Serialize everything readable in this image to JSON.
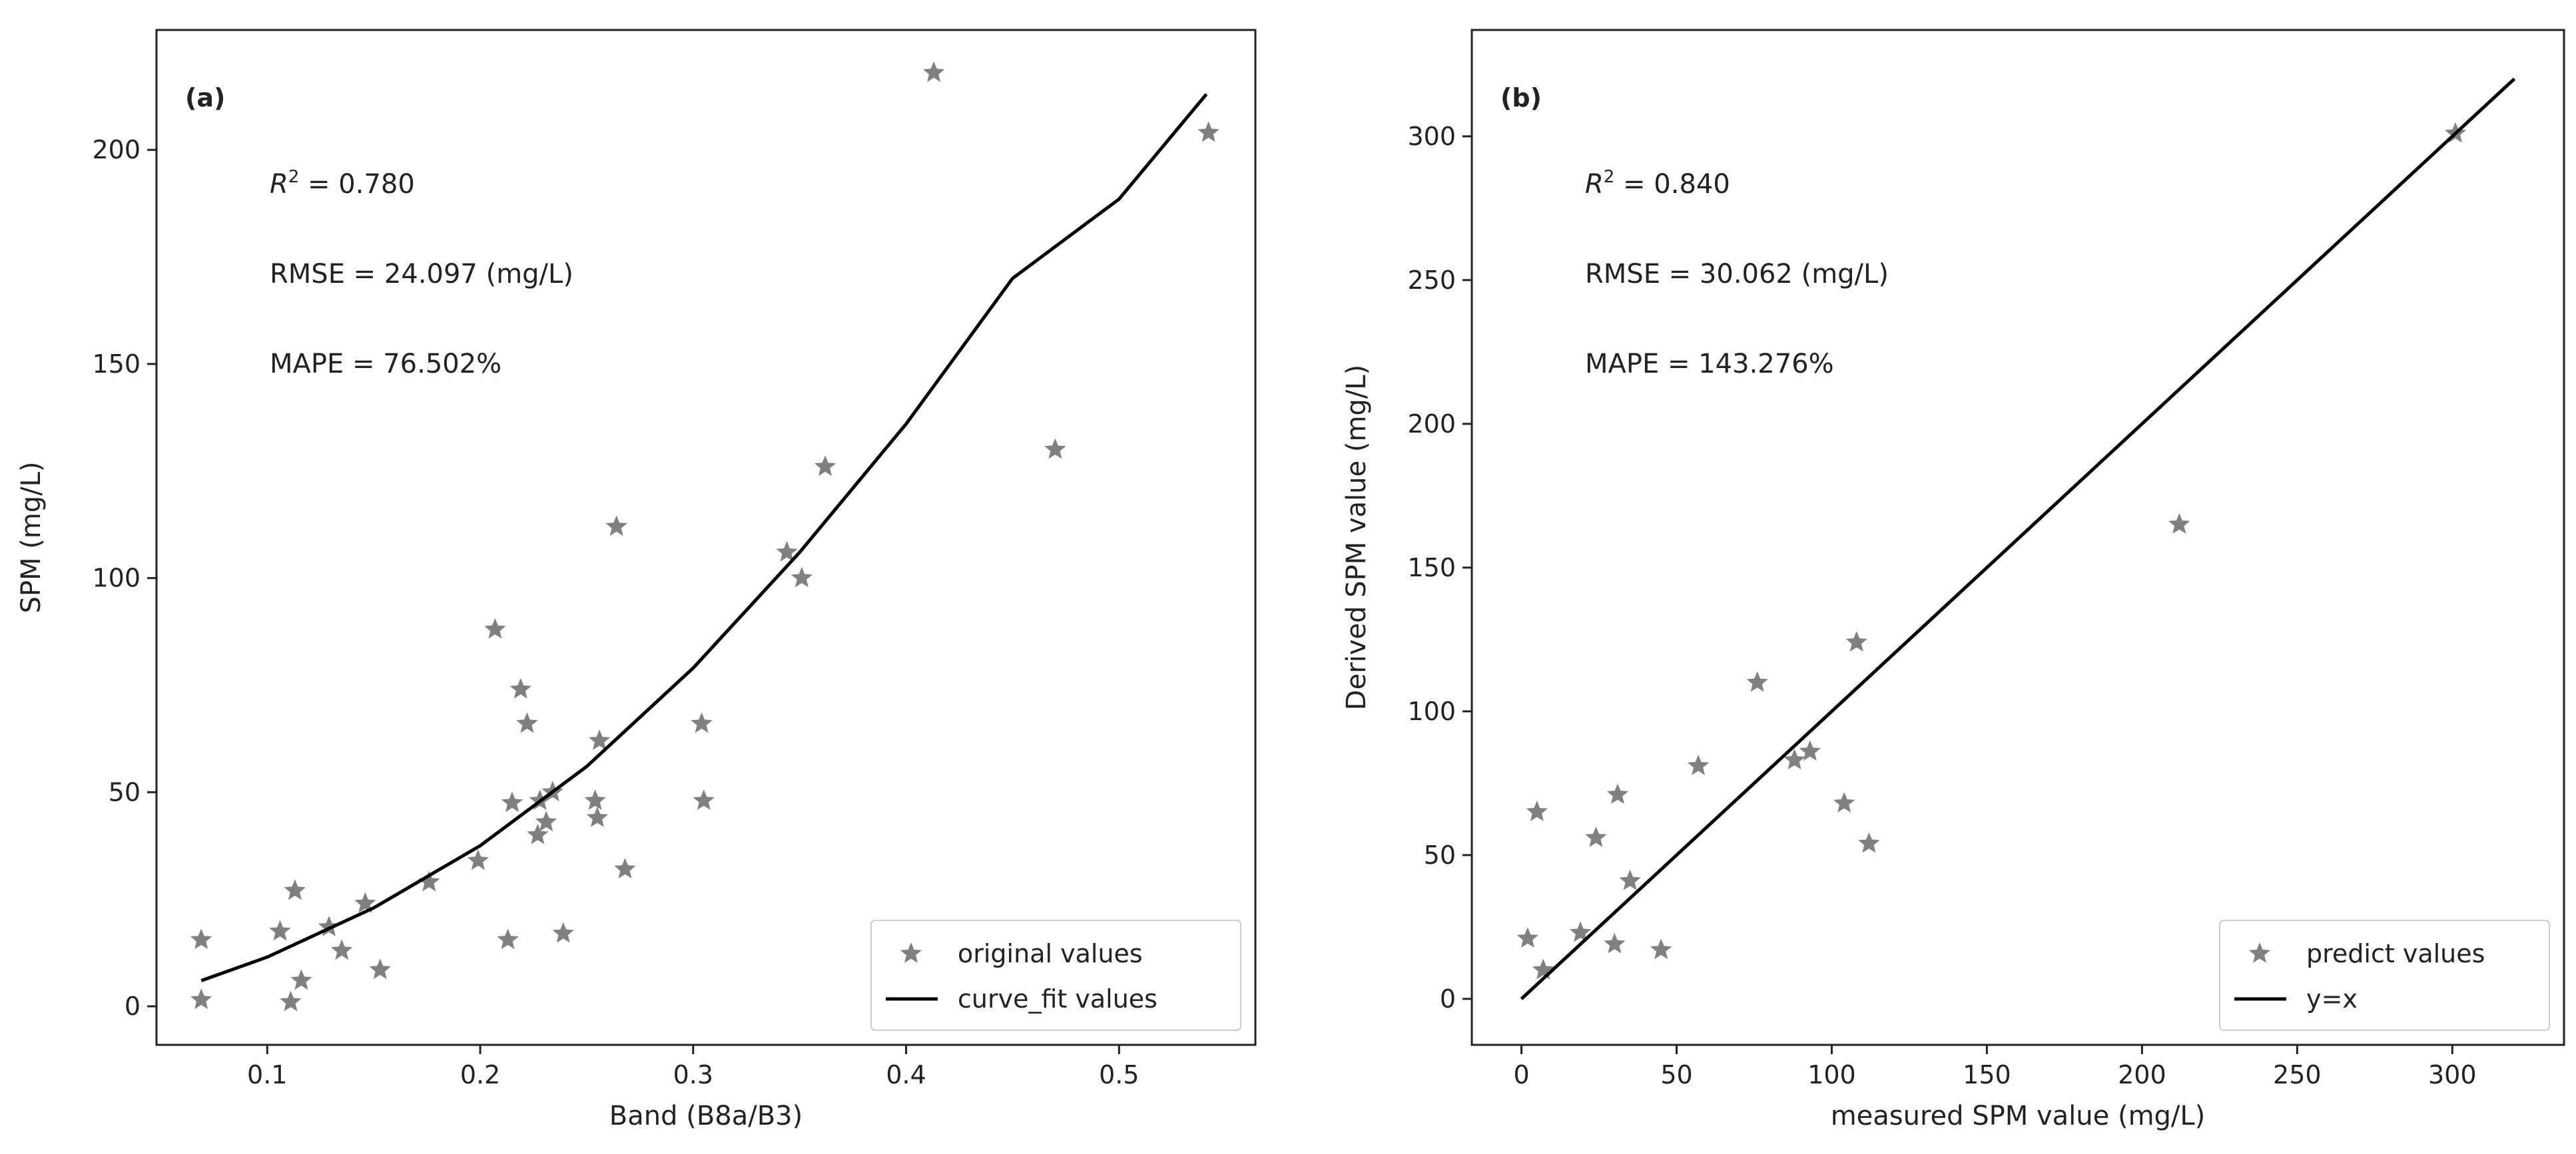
{
  "colors": {
    "marker": "#808080",
    "line": "#000000",
    "axis": "#222222",
    "legend_border": "#cccccc"
  },
  "chart_data": [
    {
      "type": "scatter",
      "panel_tag": "(a)",
      "xlabel": "Band (B8a/B3)",
      "ylabel": "SPM (mg/L)",
      "xlim": [
        0.048,
        0.564
      ],
      "ylim": [
        -9,
        228
      ],
      "xticks": [
        0.1,
        0.2,
        0.3,
        0.4,
        0.5
      ],
      "xtick_labels": [
        "0.1",
        "0.2",
        "0.3",
        "0.4",
        "0.5"
      ],
      "yticks": [
        0,
        50,
        100,
        150,
        200
      ],
      "ytick_labels": [
        "0",
        "50",
        "100",
        "150",
        "200"
      ],
      "stats": {
        "r2_symbol": "R",
        "r2_sup": "2",
        "r2_value": " = 0.780",
        "rmse": "RMSE = 24.097 (mg/L)",
        "mape": "MAPE = 76.502%"
      },
      "legend": {
        "position": "lower right",
        "scatter_label": "original values",
        "line_label": "curve_fit values"
      },
      "series": [
        {
          "name": "original values",
          "kind": "scatter",
          "points": [
            [
              0.069,
              15.5
            ],
            [
              0.069,
              1.5
            ],
            [
              0.106,
              17.5
            ],
            [
              0.113,
              27
            ],
            [
              0.111,
              1
            ],
            [
              0.116,
              6
            ],
            [
              0.129,
              18.5
            ],
            [
              0.135,
              13
            ],
            [
              0.146,
              24
            ],
            [
              0.153,
              8.5
            ],
            [
              0.176,
              29
            ],
            [
              0.199,
              34
            ],
            [
              0.207,
              88
            ],
            [
              0.213,
              15.5
            ],
            [
              0.215,
              47.5
            ],
            [
              0.219,
              74
            ],
            [
              0.222,
              66
            ],
            [
              0.227,
              40
            ],
            [
              0.228,
              48
            ],
            [
              0.231,
              43
            ],
            [
              0.234,
              50
            ],
            [
              0.239,
              17
            ],
            [
              0.254,
              48
            ],
            [
              0.255,
              44
            ],
            [
              0.256,
              62
            ],
            [
              0.264,
              112
            ],
            [
              0.268,
              32
            ],
            [
              0.304,
              66
            ],
            [
              0.305,
              48
            ],
            [
              0.344,
              106
            ],
            [
              0.351,
              100
            ],
            [
              0.362,
              126
            ],
            [
              0.413,
              218
            ],
            [
              0.47,
              130
            ],
            [
              0.542,
              204
            ]
          ]
        },
        {
          "name": "curve_fit values",
          "kind": "line",
          "points": [
            [
              0.069,
              6
            ],
            [
              0.1,
              11.5
            ],
            [
              0.15,
              23
            ],
            [
              0.2,
              37.5
            ],
            [
              0.25,
              56
            ],
            [
              0.3,
              79
            ],
            [
              0.35,
              106
            ],
            [
              0.4,
              136
            ],
            [
              0.45,
              170
            ],
            [
              0.5,
              188.5
            ],
            [
              0.541,
              213
            ]
          ]
        }
      ]
    },
    {
      "type": "scatter",
      "panel_tag": "(b)",
      "xlabel": "measured SPM value (mg/L)",
      "ylabel": "Derived SPM value (mg/L)",
      "xlim": [
        -16,
        336
      ],
      "ylim": [
        -16,
        337
      ],
      "xticks": [
        0,
        50,
        100,
        150,
        200,
        250,
        300
      ],
      "xtick_labels": [
        "0",
        "50",
        "100",
        "150",
        "200",
        "250",
        "300"
      ],
      "yticks": [
        0,
        50,
        100,
        150,
        200,
        250,
        300
      ],
      "ytick_labels": [
        "0",
        "50",
        "100",
        "150",
        "200",
        "250",
        "300"
      ],
      "stats": {
        "r2_symbol": "R",
        "r2_sup": "2",
        "r2_value": " = 0.840",
        "rmse": "RMSE = 30.062 (mg/L)",
        "mape": "MAPE = 143.276%"
      },
      "legend": {
        "position": "lower right",
        "scatter_label": "predict values",
        "line_label": "y=x"
      },
      "series": [
        {
          "name": "predict values",
          "kind": "scatter",
          "points": [
            [
              2,
              21
            ],
            [
              5,
              65
            ],
            [
              7,
              10
            ],
            [
              19,
              23
            ],
            [
              24,
              56
            ],
            [
              30,
              19
            ],
            [
              31,
              71
            ],
            [
              35,
              41
            ],
            [
              45,
              17
            ],
            [
              57,
              81
            ],
            [
              76,
              110
            ],
            [
              88,
              83
            ],
            [
              93,
              86
            ],
            [
              104,
              68
            ],
            [
              108,
              124
            ],
            [
              112,
              54
            ],
            [
              212,
              165
            ],
            [
              301,
              301
            ]
          ]
        },
        {
          "name": "y=x",
          "kind": "line",
          "points": [
            [
              0,
              0
            ],
            [
              320,
              320
            ]
          ]
        }
      ]
    }
  ]
}
